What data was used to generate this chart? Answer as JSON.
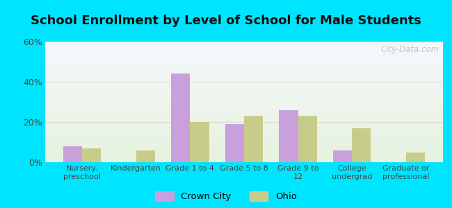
{
  "title": "School Enrollment by Level of School for Male Students",
  "categories": [
    "Nursery,\npreschool",
    "Kindergarten",
    "Grade 1 to 4",
    "Grade 5 to 8",
    "Grade 9 to\n12",
    "College\nundergrad",
    "Graduate or\nprofessional"
  ],
  "crown_city": [
    8,
    0,
    44,
    19,
    26,
    6,
    0
  ],
  "ohio": [
    7,
    6,
    20,
    23,
    23,
    17,
    5
  ],
  "crown_city_color": "#c9a0dc",
  "ohio_color": "#c8cc8a",
  "bar_width": 0.35,
  "ylim": [
    0,
    60
  ],
  "yticks": [
    0,
    20,
    40,
    60
  ],
  "ytick_labels": [
    "0%",
    "20%",
    "40%",
    "60%"
  ],
  "title_fontsize": 13,
  "legend_labels": [
    "Crown City",
    "Ohio"
  ],
  "background_color": "#00e5ff",
  "grid_color": "#ddddcc",
  "tick_color": "#444444",
  "watermark": "City-Data.com",
  "watermark_color": "#bbbbbb"
}
